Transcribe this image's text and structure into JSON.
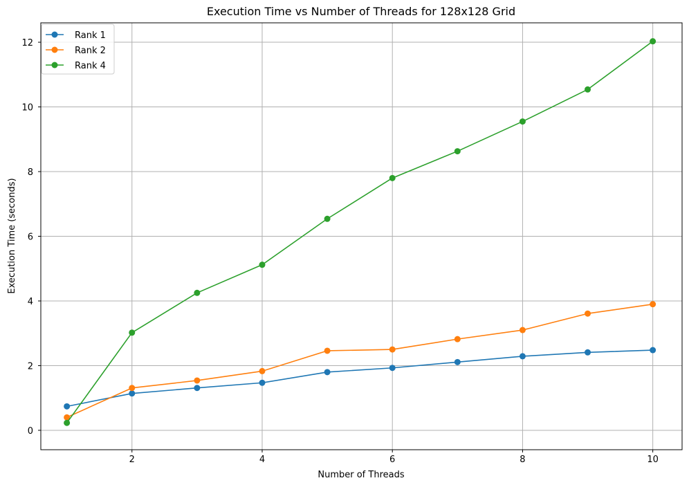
{
  "chart_data": {
    "type": "line",
    "title": "Execution Time vs Number of Threads for 128x128 Grid",
    "xlabel": "Number of Threads",
    "ylabel": "Execution Time (seconds)",
    "x": [
      1,
      2,
      3,
      4,
      5,
      6,
      7,
      8,
      9,
      10
    ],
    "xlim": [
      0.6,
      10.45
    ],
    "ylim": [
      -0.6,
      12.6
    ],
    "xticks": [
      2,
      4,
      6,
      8,
      10
    ],
    "yticks": [
      0,
      2,
      4,
      6,
      8,
      10,
      12
    ],
    "grid": true,
    "legend_position": "top-left",
    "series": [
      {
        "name": "Rank 1",
        "color": "#1f77b4",
        "values": [
          0.74,
          1.14,
          1.31,
          1.47,
          1.8,
          1.93,
          2.11,
          2.29,
          2.41,
          2.48
        ]
      },
      {
        "name": "Rank 2",
        "color": "#ff7f0e",
        "values": [
          0.4,
          1.31,
          1.54,
          1.83,
          2.46,
          2.5,
          2.82,
          3.1,
          3.61,
          3.9
        ]
      },
      {
        "name": "Rank 4",
        "color": "#2ca02c",
        "values": [
          0.23,
          3.02,
          4.25,
          5.12,
          6.54,
          7.8,
          8.63,
          9.55,
          10.54,
          12.03
        ]
      }
    ]
  }
}
